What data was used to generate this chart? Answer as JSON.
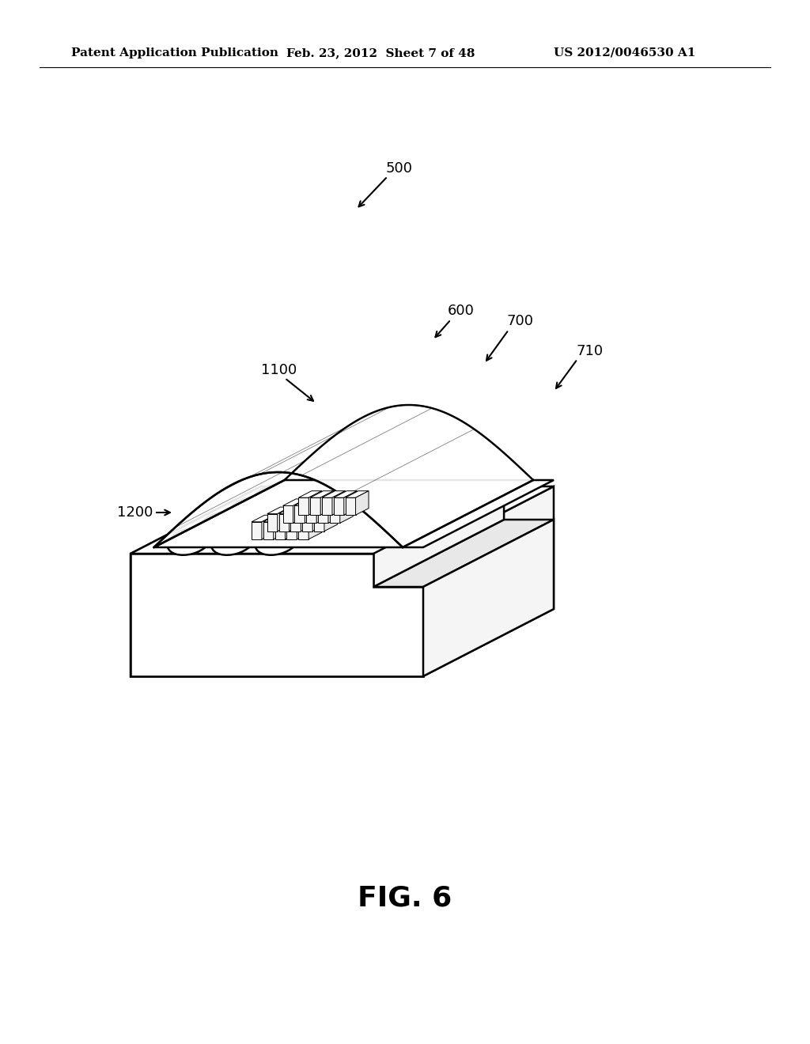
{
  "header_left": "Patent Application Publication",
  "header_mid": "Feb. 23, 2012  Sheet 7 of 48",
  "header_right": "US 2012/0046530 A1",
  "figure_label": "FIG. 6",
  "bg_color": "#ffffff",
  "line_color": "#000000",
  "label_500": "500",
  "label_600": "600",
  "label_700": "700",
  "label_710": "710",
  "label_1100": "1100",
  "label_1200": "1200",
  "face_white": "#ffffff",
  "face_light": "#f5f5f5",
  "face_mid": "#e8e8e8",
  "face_dark": "#d8d8d8",
  "face_darker": "#c8c8c8"
}
